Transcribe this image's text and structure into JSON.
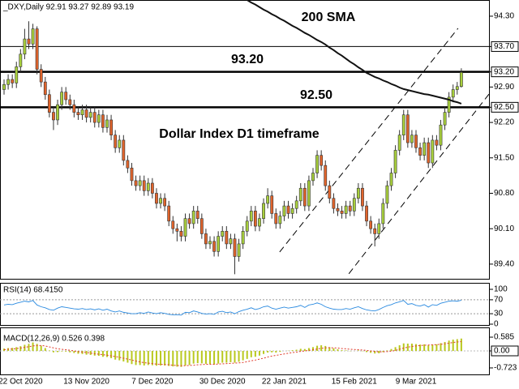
{
  "chart_data": [
    {
      "type": "candlestick",
      "title": "_DXY,Daily  92.91 93.27 92.89 93.19",
      "categories": [
        null,
        null,
        null,
        null,
        "22 Oct 2020",
        null,
        null,
        null,
        null,
        null,
        null,
        null,
        null,
        null,
        null,
        null,
        null,
        null,
        null,
        null,
        "13 Nov 2020",
        null,
        null,
        null,
        null,
        null,
        null,
        null,
        null,
        null,
        null,
        null,
        null,
        null,
        null,
        null,
        "7 Dec 2020",
        null,
        null,
        null,
        null,
        null,
        null,
        null,
        null,
        null,
        null,
        null,
        null,
        null,
        null,
        null,
        null,
        "30 Dec 2020",
        null,
        null,
        null,
        null,
        null,
        null,
        null,
        null,
        null,
        null,
        null,
        null,
        null,
        null,
        "22 Jan 2021",
        null,
        null,
        null,
        null,
        null,
        null,
        null,
        null,
        null,
        null,
        null,
        null,
        null,
        null,
        null,
        null,
        "15 Feb 2021",
        null,
        null,
        null,
        null,
        null,
        null,
        null,
        null,
        null,
        null,
        null,
        null,
        null,
        null,
        "9 Mar 2021",
        null,
        null,
        null,
        null,
        null,
        null,
        null,
        null,
        null,
        null,
        null
      ],
      "open": [
        92.85,
        92.95,
        93.05,
        92.98,
        93.3,
        93.55,
        93.85,
        93.75,
        94.05,
        93.25,
        93.0,
        92.75,
        92.4,
        92.25,
        92.55,
        92.8,
        92.65,
        92.55,
        92.4,
        92.35,
        92.45,
        92.3,
        92.4,
        92.2,
        92.35,
        92.1,
        92.25,
        91.95,
        91.7,
        91.85,
        91.45,
        91.3,
        91.05,
        90.95,
        91.05,
        90.85,
        91.0,
        90.8,
        90.6,
        90.7,
        90.55,
        90.25,
        90.1,
        90.05,
        89.95,
        90.3,
        90.2,
        90.45,
        90.3,
        90.0,
        89.8,
        89.85,
        89.65,
        89.95,
        90.05,
        89.8,
        89.9,
        89.55,
        89.8,
        90.05,
        90.25,
        90.45,
        90.15,
        90.3,
        90.6,
        90.75,
        90.4,
        90.2,
        90.35,
        90.55,
        90.4,
        90.5,
        90.65,
        90.9,
        90.55,
        91.05,
        91.2,
        91.55,
        91.35,
        90.95,
        90.7,
        90.5,
        90.45,
        90.4,
        90.55,
        90.45,
        90.7,
        90.9,
        90.55,
        90.25,
        90.1,
        90.0,
        90.2,
        90.6,
        90.95,
        91.2,
        91.65,
        91.95,
        92.35,
        91.8,
        91.95,
        91.7,
        91.55,
        91.8,
        91.4,
        91.85,
        91.75,
        92.15,
        92.4,
        92.7,
        92.85,
        92.91
      ],
      "high": [
        93.05,
        93.15,
        93.15,
        93.4,
        93.65,
        94.05,
        94.2,
        94.15,
        94.1,
        93.35,
        93.1,
        92.85,
        92.5,
        92.65,
        92.9,
        92.9,
        92.75,
        92.65,
        92.5,
        92.55,
        92.55,
        92.5,
        92.5,
        92.45,
        92.45,
        92.35,
        92.35,
        92.05,
        91.95,
        91.95,
        91.55,
        91.4,
        91.15,
        91.15,
        91.15,
        91.1,
        91.1,
        90.9,
        90.8,
        90.8,
        90.65,
        90.35,
        90.2,
        90.15,
        90.4,
        90.4,
        90.55,
        90.55,
        90.4,
        90.1,
        89.95,
        89.95,
        90.05,
        90.15,
        90.15,
        90.0,
        90.0,
        89.9,
        90.15,
        90.35,
        90.55,
        90.55,
        90.4,
        90.7,
        90.9,
        90.85,
        90.5,
        90.45,
        90.65,
        90.65,
        90.6,
        90.75,
        91.0,
        91.0,
        91.15,
        91.3,
        91.65,
        91.65,
        91.45,
        91.05,
        90.8,
        90.6,
        90.55,
        90.65,
        90.65,
        90.8,
        91.0,
        91.0,
        90.65,
        90.35,
        90.2,
        90.3,
        90.7,
        91.05,
        91.3,
        91.75,
        92.05,
        92.45,
        92.45,
        92.05,
        92.05,
        91.8,
        91.9,
        91.9,
        91.95,
        91.95,
        92.25,
        92.5,
        92.8,
        92.95,
        93.0,
        93.27
      ],
      "low": [
        92.75,
        92.85,
        92.88,
        92.88,
        93.2,
        93.45,
        93.65,
        93.65,
        93.15,
        92.9,
        92.65,
        92.3,
        92.05,
        92.15,
        92.45,
        92.55,
        92.45,
        92.3,
        92.25,
        92.25,
        92.2,
        92.2,
        92.1,
        92.1,
        92.0,
        92.0,
        91.85,
        91.6,
        91.6,
        91.35,
        91.2,
        90.95,
        90.85,
        90.85,
        90.75,
        90.75,
        90.7,
        90.5,
        90.5,
        90.45,
        90.15,
        90.0,
        89.85,
        89.85,
        89.85,
        90.1,
        90.1,
        90.2,
        89.9,
        89.7,
        89.7,
        89.55,
        89.55,
        89.85,
        89.7,
        89.7,
        89.2,
        89.45,
        89.7,
        89.95,
        90.15,
        90.05,
        90.05,
        90.2,
        90.5,
        90.3,
        90.1,
        90.1,
        90.25,
        90.3,
        90.3,
        90.4,
        90.55,
        90.45,
        90.45,
        90.95,
        91.1,
        91.25,
        90.85,
        90.6,
        90.4,
        90.35,
        90.3,
        90.3,
        90.35,
        90.35,
        90.6,
        90.45,
        90.15,
        90.0,
        89.75,
        89.9,
        90.1,
        90.5,
        90.85,
        91.1,
        91.55,
        91.85,
        91.7,
        91.7,
        91.6,
        91.45,
        91.45,
        91.3,
        91.3,
        91.65,
        91.65,
        92.05,
        92.3,
        92.6,
        92.75,
        92.89
      ],
      "close": [
        92.95,
        93.05,
        92.98,
        93.3,
        93.55,
        93.85,
        93.75,
        94.05,
        93.25,
        93.0,
        92.75,
        92.4,
        92.25,
        92.55,
        92.8,
        92.65,
        92.55,
        92.4,
        92.35,
        92.45,
        92.3,
        92.4,
        92.2,
        92.35,
        92.1,
        92.25,
        91.95,
        91.7,
        91.85,
        91.45,
        91.3,
        91.05,
        90.95,
        91.05,
        90.85,
        91.0,
        90.8,
        90.6,
        90.7,
        90.55,
        90.25,
        90.1,
        90.05,
        89.95,
        90.3,
        90.2,
        90.45,
        90.3,
        90.0,
        89.8,
        89.85,
        89.65,
        89.95,
        90.05,
        89.8,
        89.9,
        89.55,
        89.8,
        90.05,
        90.25,
        90.45,
        90.15,
        90.3,
        90.6,
        90.75,
        90.4,
        90.2,
        90.35,
        90.55,
        90.4,
        90.5,
        90.65,
        90.9,
        90.55,
        91.05,
        91.2,
        91.55,
        91.35,
        90.95,
        90.7,
        90.5,
        90.45,
        90.4,
        90.55,
        90.45,
        90.7,
        90.9,
        90.55,
        90.25,
        90.1,
        90.0,
        90.2,
        90.6,
        90.95,
        91.2,
        91.65,
        91.95,
        92.35,
        91.8,
        91.95,
        91.7,
        91.55,
        91.8,
        91.4,
        91.85,
        91.75,
        92.15,
        92.4,
        92.7,
        92.85,
        92.91,
        93.19
      ],
      "up_color": "#a8cf3c",
      "down_color": "#e0642c",
      "sma": {
        "color": "#111111",
        "values": [
          null,
          null,
          null,
          null,
          null,
          null,
          null,
          null,
          null,
          null,
          null,
          null,
          null,
          null,
          null,
          null,
          null,
          null,
          null,
          null,
          null,
          null,
          null,
          null,
          null,
          null,
          null,
          null,
          null,
          null,
          null,
          null,
          null,
          null,
          null,
          null,
          null,
          null,
          null,
          null,
          null,
          null,
          null,
          null,
          null,
          null,
          null,
          null,
          null,
          null,
          null,
          null,
          null,
          null,
          null,
          null,
          null,
          null,
          null,
          94.62,
          94.57,
          94.53,
          94.48,
          94.43,
          94.39,
          94.34,
          94.3,
          94.25,
          94.21,
          94.16,
          94.11,
          94.07,
          94.02,
          93.97,
          93.93,
          93.88,
          93.83,
          93.79,
          93.74,
          93.68,
          93.63,
          93.57,
          93.52,
          93.46,
          93.4,
          93.35,
          93.29,
          93.24,
          93.18,
          93.14,
          93.1,
          93.07,
          93.03,
          93.0,
          92.96,
          92.93,
          92.89,
          92.86,
          92.84,
          92.82,
          92.8,
          92.78,
          92.76,
          92.75,
          92.73,
          92.71,
          92.69,
          92.67,
          92.65,
          92.62,
          92.6,
          92.57
        ]
      },
      "hlines": [
        {
          "value": 93.7,
          "width": 1
        },
        {
          "value": 93.2,
          "width": 2.5
        },
        {
          "value": 92.5,
          "width": 2.5
        }
      ],
      "trendlines": [
        {
          "x": [
            66.9,
            110.2
          ],
          "values": [
            89.64,
            94.06
          ]
        },
        {
          "x": [
            83.7,
            117.9
          ],
          "values": [
            89.21,
            92.78
          ]
        }
      ],
      "annotations": [
        "200 SMA",
        "93.20",
        "92.50",
        "Dollar Index D1 timeframe"
      ],
      "ylim": [
        89.11,
        94.62
      ],
      "yticks": [
        {
          "value": 94.3,
          "label": "94.30"
        },
        {
          "value": 93.7,
          "label": "93.70"
        },
        {
          "value": 93.2,
          "label": "93.20"
        },
        {
          "value": 92.9,
          "label": "92.90"
        },
        {
          "value": 92.5,
          "label": "92.50"
        },
        {
          "value": 92.2,
          "label": "92.20"
        },
        {
          "value": 91.5,
          "label": "91.50"
        },
        {
          "value": 90.8,
          "label": "90.80"
        },
        {
          "value": 90.1,
          "label": "90.10"
        },
        {
          "value": 89.4,
          "label": "89.40"
        }
      ]
    },
    {
      "type": "line",
      "title": "RSI(14) 68.4150",
      "color": "#2a8ae0",
      "values": [
        55,
        57,
        56,
        60,
        63,
        66,
        64,
        68,
        55,
        50,
        47,
        42,
        40,
        46,
        50,
        48,
        46,
        44,
        43,
        45,
        42,
        44,
        41,
        44,
        40,
        43,
        38,
        35,
        38,
        34,
        32,
        30,
        30,
        33,
        31,
        35,
        32,
        30,
        33,
        31,
        28,
        27,
        27,
        26,
        34,
        33,
        38,
        35,
        31,
        29,
        30,
        28,
        35,
        37,
        33,
        35,
        30,
        36,
        40,
        43,
        47,
        42,
        45,
        50,
        52,
        46,
        43,
        46,
        49,
        46,
        48,
        50,
        54,
        48,
        55,
        57,
        61,
        57,
        50,
        46,
        43,
        42,
        42,
        45,
        43,
        47,
        50,
        45,
        41,
        39,
        38,
        42,
        48,
        53,
        56,
        61,
        64,
        68,
        57,
        59,
        54,
        52,
        56,
        49,
        56,
        54,
        60,
        63,
        66,
        67,
        66,
        68.415
      ],
      "levels": [
        70,
        30
      ],
      "ylim": [
        0,
        100
      ],
      "yticks": [
        100,
        70,
        30,
        0
      ]
    },
    {
      "type": "macd",
      "title": "MACD(12,26,9) 0.526 0.398",
      "histogram": {
        "color": "#b9c81e",
        "values": [
          0.1,
          0.12,
          0.13,
          0.16,
          0.2,
          0.26,
          0.3,
          0.36,
          0.3,
          0.22,
          0.12,
          0.02,
          -0.06,
          -0.05,
          -0.02,
          -0.03,
          -0.06,
          -0.09,
          -0.12,
          -0.13,
          -0.16,
          -0.17,
          -0.2,
          -0.21,
          -0.25,
          -0.26,
          -0.31,
          -0.37,
          -0.4,
          -0.45,
          -0.5,
          -0.56,
          -0.6,
          -0.6,
          -0.62,
          -0.6,
          -0.61,
          -0.63,
          -0.62,
          -0.62,
          -0.64,
          -0.66,
          -0.67,
          -0.68,
          -0.62,
          -0.6,
          -0.54,
          -0.52,
          -0.53,
          -0.55,
          -0.56,
          -0.58,
          -0.54,
          -0.5,
          -0.5,
          -0.48,
          -0.5,
          -0.46,
          -0.4,
          -0.34,
          -0.27,
          -0.25,
          -0.2,
          -0.13,
          -0.07,
          -0.06,
          -0.07,
          -0.04,
          0.0,
          0.01,
          0.03,
          0.05,
          0.09,
          0.08,
          0.12,
          0.16,
          0.22,
          0.24,
          0.21,
          0.16,
          0.11,
          0.07,
          0.03,
          0.02,
          -0.01,
          0.0,
          0.02,
          -0.01,
          -0.05,
          -0.08,
          -0.11,
          -0.1,
          -0.05,
          0.02,
          0.08,
          0.16,
          0.24,
          0.32,
          0.31,
          0.31,
          0.29,
          0.27,
          0.28,
          0.24,
          0.27,
          0.28,
          0.33,
          0.38,
          0.44,
          0.48,
          0.5,
          0.526
        ]
      },
      "signal": {
        "color": "#e03a2a",
        "values": [
          0.05,
          0.07,
          0.08,
          0.1,
          0.12,
          0.15,
          0.18,
          0.21,
          0.23,
          0.23,
          0.21,
          0.17,
          0.13,
          0.09,
          0.07,
          0.05,
          0.03,
          0.0,
          -0.03,
          -0.05,
          -0.07,
          -0.09,
          -0.12,
          -0.14,
          -0.16,
          -0.18,
          -0.21,
          -0.24,
          -0.27,
          -0.31,
          -0.35,
          -0.39,
          -0.43,
          -0.47,
          -0.5,
          -0.52,
          -0.54,
          -0.56,
          -0.57,
          -0.58,
          -0.59,
          -0.61,
          -0.62,
          -0.63,
          -0.63,
          -0.62,
          -0.61,
          -0.59,
          -0.58,
          -0.57,
          -0.57,
          -0.57,
          -0.56,
          -0.55,
          -0.54,
          -0.53,
          -0.52,
          -0.51,
          -0.49,
          -0.46,
          -0.42,
          -0.39,
          -0.35,
          -0.31,
          -0.26,
          -0.22,
          -0.19,
          -0.16,
          -0.13,
          -0.1,
          -0.07,
          -0.05,
          -0.02,
          0.0,
          0.02,
          0.05,
          0.08,
          0.11,
          0.13,
          0.14,
          0.13,
          0.12,
          0.1,
          0.09,
          0.07,
          0.06,
          0.05,
          0.04,
          0.02,
          0.0,
          -0.02,
          -0.04,
          -0.04,
          -0.03,
          -0.01,
          0.02,
          0.07,
          0.12,
          0.16,
          0.19,
          0.21,
          0.23,
          0.24,
          0.25,
          0.26,
          0.27,
          0.28,
          0.3,
          0.33,
          0.36,
          0.38,
          0.398
        ]
      },
      "ylim": [
        -1.0,
        1.0
      ],
      "yticks": [
        0.585,
        {
          "value": 0,
          "label": "0.00"
        },
        -0.723
      ],
      "zero_line": true
    }
  ]
}
